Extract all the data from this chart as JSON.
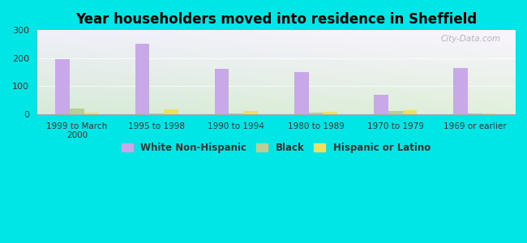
{
  "title": "Year householders moved into residence in Sheffield",
  "categories": [
    "1999 to March\n2000",
    "1995 to 1998",
    "1990 to 1994",
    "1980 to 1989",
    "1970 to 1979",
    "1969 or earlier"
  ],
  "white_non_hispanic": [
    196,
    251,
    163,
    150,
    68,
    165
  ],
  "black": [
    20,
    3,
    2,
    5,
    10,
    3
  ],
  "hispanic_or_latino": [
    5,
    16,
    10,
    7,
    14,
    3
  ],
  "white_color": "#c8a8e8",
  "black_color": "#b8d098",
  "hispanic_color": "#f0e060",
  "bg_outer": "#00e5e5",
  "bg_plot_topleft": "#e8f0e0",
  "bg_plot_topright": "#f8f0f8",
  "bg_plot_bottom": "#d8ead8",
  "ylim": [
    0,
    300
  ],
  "yticks": [
    0,
    100,
    200,
    300
  ],
  "bar_width": 0.18,
  "watermark": "City-Data.com"
}
